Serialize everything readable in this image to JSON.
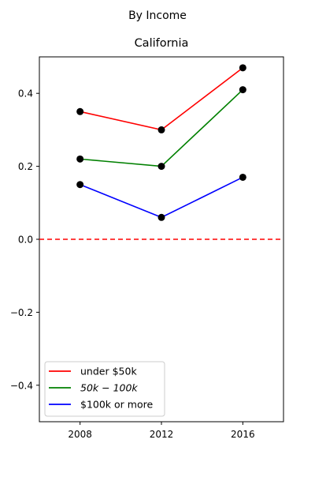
{
  "figure": {
    "suptitle": "By Income"
  },
  "chart_data": {
    "type": "line",
    "title": "California",
    "xlabel": "",
    "ylabel": "",
    "x": [
      2008,
      2012,
      2016
    ],
    "x_tick_labels": [
      "2008",
      "2012",
      "2016"
    ],
    "xlim": [
      2006,
      2018
    ],
    "ylim": [
      -0.5,
      0.5
    ],
    "y_ticks": [
      -0.4,
      -0.2,
      0.0,
      0.2,
      0.4
    ],
    "y_tick_labels": [
      "−0.4",
      "−0.2",
      "0.0",
      "0.2",
      "0.4"
    ],
    "grid": false,
    "legend_position": "lower-left",
    "reference_line": {
      "y": 0,
      "style": "dashed",
      "color": "#ff0000"
    },
    "marker_color": "#000000",
    "series": [
      {
        "name": "under $50k",
        "color": "#ff0000",
        "values": [
          0.35,
          0.3,
          0.47
        ]
      },
      {
        "name": "$50k-$100k",
        "legend_label": "50k − 100k",
        "color": "#008000",
        "values": [
          0.22,
          0.2,
          0.41
        ]
      },
      {
        "name": "$100k or more",
        "color": "#0000ff",
        "values": [
          0.15,
          0.06,
          0.17
        ]
      }
    ]
  }
}
